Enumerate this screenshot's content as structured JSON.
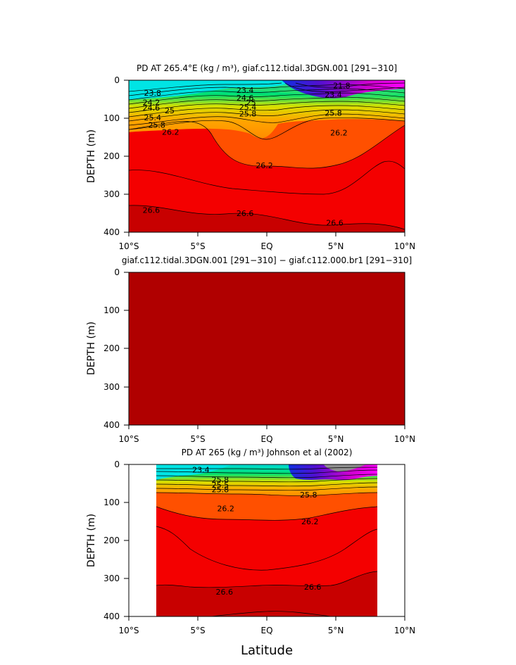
{
  "figure": {
    "xlabel": "Latitude",
    "panels": [
      {
        "id": "model",
        "title": "PD AT 265.4°E (kg / m³), giaf.c112.tidal.3DGN.001 [291−310]",
        "ylabel": "DEPTH (m)"
      },
      {
        "id": "difference",
        "title": "giaf.c112.tidal.3DGN.001 [291−310] − giaf.c112.000.br1 [291−310]",
        "ylabel": "DEPTH (m)"
      },
      {
        "id": "observed",
        "title": "PD AT 265 (kg / m³) Johnson et al (2002)",
        "ylabel": "DEPTH (m)"
      }
    ]
  },
  "chart_data": [
    {
      "type": "heatmap",
      "subtype": "filled-contour",
      "title": "PD AT 265.4°E (kg / m³), giaf.c112.tidal.3DGN.001 [291−310]",
      "xlabel": "",
      "ylabel": "DEPTH (m)",
      "xlim": [
        -10,
        10
      ],
      "ylim": [
        400,
        0
      ],
      "x_tick_values": [
        -10,
        -5,
        0,
        5,
        10
      ],
      "x_tick_labels": [
        "10°S",
        "5°S",
        "EQ",
        "5°N",
        "10°N"
      ],
      "y_ticks": [
        0,
        100,
        200,
        300,
        400
      ],
      "data_extent_x": [
        -10,
        10
      ],
      "contour_labels": [
        {
          "text": "23.8",
          "x": -8.9,
          "y": 33
        },
        {
          "text": "24.2",
          "x": -9.0,
          "y": 58
        },
        {
          "text": "24.6",
          "x": -9.0,
          "y": 72
        },
        {
          "text": "25",
          "x": -7.4,
          "y": 80
        },
        {
          "text": "25.4",
          "x": -8.9,
          "y": 98
        },
        {
          "text": "25.8",
          "x": -8.6,
          "y": 118
        },
        {
          "text": "26.2",
          "x": -7.6,
          "y": 136
        },
        {
          "text": "23.4",
          "x": -2.2,
          "y": 26
        },
        {
          "text": "24.6",
          "x": -2.2,
          "y": 46
        },
        {
          "text": "25",
          "x": -1.5,
          "y": 58
        },
        {
          "text": "25.4",
          "x": -2.0,
          "y": 70
        },
        {
          "text": "25.8",
          "x": -2.0,
          "y": 88
        },
        {
          "text": "21.8",
          "x": 4.8,
          "y": 14
        },
        {
          "text": "23.4",
          "x": 4.2,
          "y": 38
        },
        {
          "text": "25.8",
          "x": 4.2,
          "y": 86
        },
        {
          "text": "26.2",
          "x": 4.6,
          "y": 138
        },
        {
          "text": "26.2",
          "x": -0.8,
          "y": 224
        },
        {
          "text": "26.6",
          "x": -9.0,
          "y": 342
        },
        {
          "text": "26.6",
          "x": -2.2,
          "y": 350
        },
        {
          "text": "26.6",
          "x": 4.3,
          "y": 375
        }
      ]
    },
    {
      "type": "heatmap",
      "subtype": "filled-contour",
      "title": "giaf.c112.tidal.3DGN.001 [291−310] − giaf.c112.000.br1 [291−310]",
      "xlabel": "",
      "ylabel": "DEPTH (m)",
      "xlim": [
        -10,
        10
      ],
      "ylim": [
        400,
        0
      ],
      "x_tick_values": [
        -10,
        -5,
        0,
        5,
        10
      ],
      "x_tick_labels": [
        "10°S",
        "5°S",
        "EQ",
        "5°N",
        "10°N"
      ],
      "y_ticks": [
        0,
        100,
        200,
        300,
        400
      ],
      "uniform_fill": true
    },
    {
      "type": "heatmap",
      "subtype": "filled-contour",
      "title": "PD AT 265 (kg / m³) Johnson et al (2002)",
      "xlabel": "Latitude",
      "ylabel": "DEPTH (m)",
      "xlim": [
        -10,
        10
      ],
      "ylim": [
        400,
        0
      ],
      "x_tick_values": [
        -10,
        -5,
        0,
        5,
        10
      ],
      "x_tick_labels": [
        "10°S",
        "5°S",
        "EQ",
        "5°N",
        "10°N"
      ],
      "y_ticks": [
        0,
        100,
        200,
        300,
        400
      ],
      "data_extent_x": [
        -8,
        8
      ],
      "contour_labels": [
        {
          "text": "23.4",
          "x": -5.4,
          "y": 14
        },
        {
          "text": "25.8",
          "x": -4.0,
          "y": 40
        },
        {
          "text": "25.5",
          "x": -4.0,
          "y": 54
        },
        {
          "text": "25.8",
          "x": -4.0,
          "y": 66
        },
        {
          "text": "25.8",
          "x": 2.4,
          "y": 80
        },
        {
          "text": "26.2",
          "x": -3.6,
          "y": 116
        },
        {
          "text": "26.2",
          "x": 2.5,
          "y": 150
        },
        {
          "text": "26.6",
          "x": -3.7,
          "y": 335
        },
        {
          "text": "26.6",
          "x": 2.7,
          "y": 322
        }
      ]
    }
  ]
}
